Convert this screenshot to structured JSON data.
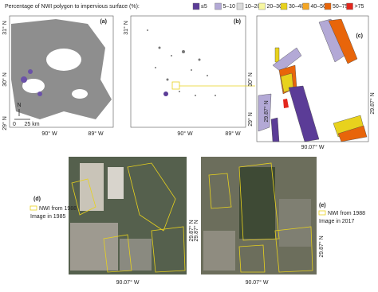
{
  "legend": {
    "title": "Percentage of NWI polygon to impervious surface (%):",
    "items": [
      {
        "label": "≤5",
        "color": "#5b3c97"
      },
      {
        "label": "5–10",
        "color": "#b3a9d6"
      },
      {
        "label": "10–20",
        "color": "#dcdcdc"
      },
      {
        "label": "20–30",
        "color": "#f7f7a0"
      },
      {
        "label": "30–40",
        "color": "#e8d21d"
      },
      {
        "label": "40–50",
        "color": "#f5a623"
      },
      {
        "label": "50–75",
        "color": "#e8650a"
      },
      {
        "label": ">75",
        "color": "#e3261c"
      }
    ]
  },
  "panels": [
    {
      "label": "(a)",
      "x_labels": [
        "90° W",
        "89° W"
      ],
      "y_labels": [
        "31° N",
        "30° N",
        "29° N"
      ],
      "north": "N",
      "scale": [
        "0",
        "25 km"
      ]
    },
    {
      "label": "(b)",
      "x_labels": [
        "90° W",
        "89° W"
      ],
      "y_labels": [
        "31° N",
        "30° N",
        "29° N"
      ]
    },
    {
      "label": "(c)",
      "x_labels": [
        "90.07° W"
      ],
      "y_labels": [
        "29.87° N",
        "29.87° N"
      ]
    },
    {
      "label": "(d)",
      "x_labels": [
        "90.07° W"
      ],
      "y_labels": [
        "29.87° N"
      ],
      "legend": [
        "NWI from 1988",
        "Image in 1985"
      ]
    },
    {
      "label": "(e)",
      "x_labels": [
        "90.07° W"
      ],
      "y_labels": [
        "29.87° N",
        "29.87° N"
      ],
      "legend": [
        "NWI from 1988",
        "Image in 2017"
      ]
    }
  ]
}
